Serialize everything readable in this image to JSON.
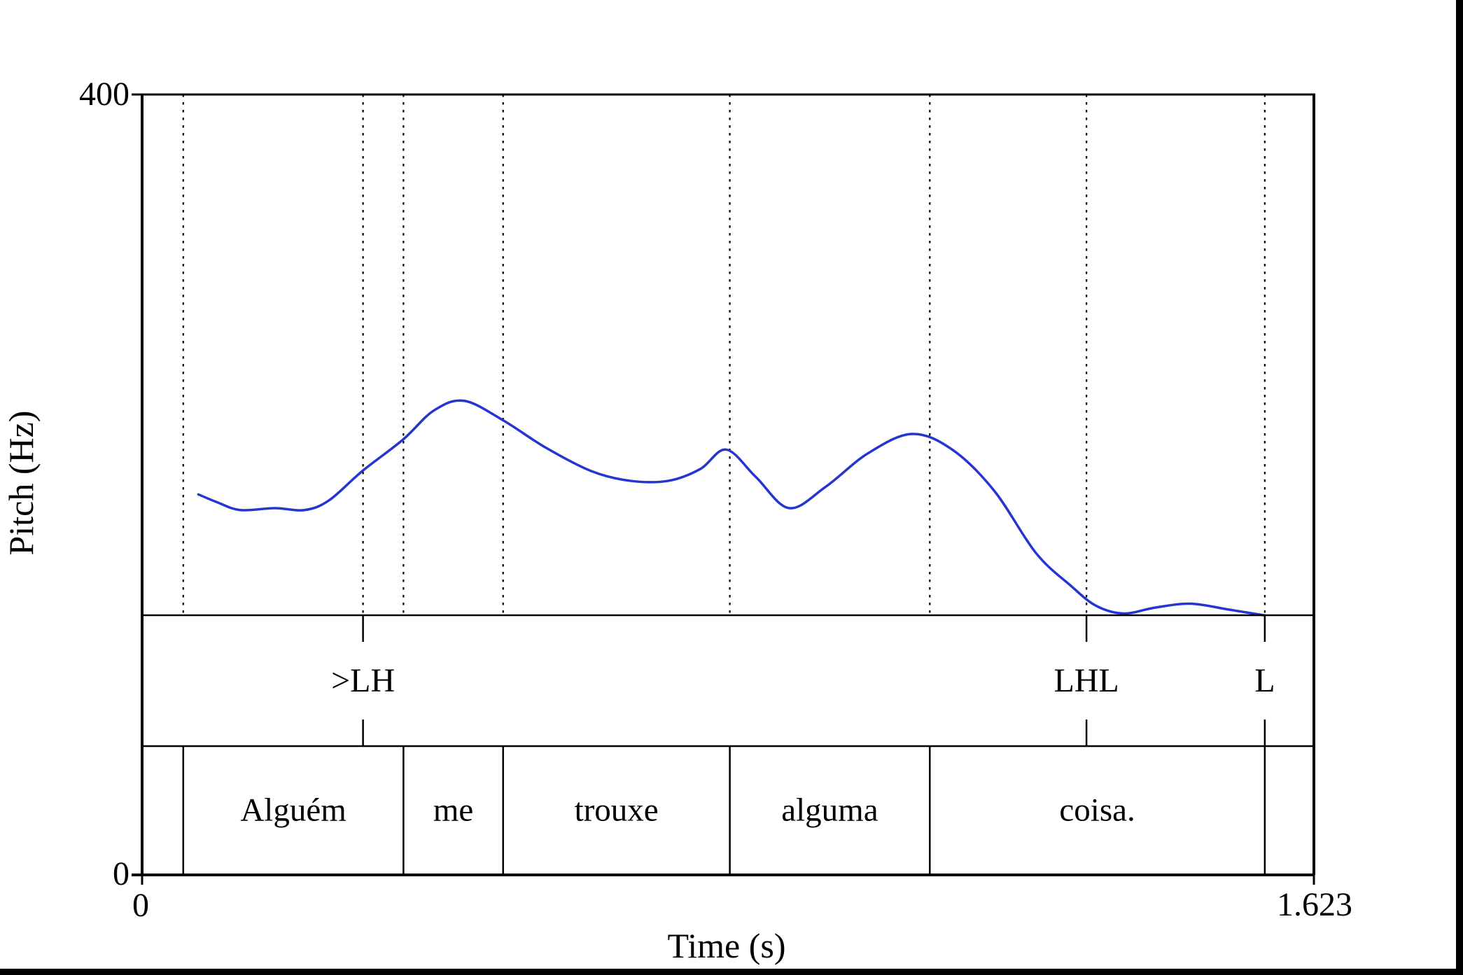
{
  "chart_data": {
    "type": "line",
    "title": "",
    "xlabel": "Time (s)",
    "ylabel": "Pitch (Hz)",
    "xlim": [
      0,
      1.623
    ],
    "ylim": [
      0,
      400
    ],
    "grid": false,
    "x_tick_labels": [
      "0",
      "1.623"
    ],
    "y_tick_labels": [
      "0",
      "400"
    ],
    "curve_color": "#2535d2",
    "series": [
      {
        "name": "pitch_contour",
        "units": [
          "time_s",
          "hz"
        ],
        "color": "#2535d2",
        "points": [
          [
            0.078,
            195
          ],
          [
            0.104,
            191
          ],
          [
            0.136,
            187
          ],
          [
            0.184,
            188
          ],
          [
            0.225,
            187
          ],
          [
            0.259,
            192
          ],
          [
            0.305,
            207
          ],
          [
            0.361,
            223
          ],
          [
            0.404,
            238
          ],
          [
            0.446,
            243
          ],
          [
            0.5,
            233
          ],
          [
            0.559,
            219
          ],
          [
            0.622,
            207
          ],
          [
            0.676,
            202
          ],
          [
            0.729,
            202
          ],
          [
            0.773,
            208
          ],
          [
            0.809,
            218
          ],
          [
            0.85,
            204
          ],
          [
            0.896,
            188
          ],
          [
            0.947,
            199
          ],
          [
            1.005,
            216
          ],
          [
            1.066,
            226
          ],
          [
            1.122,
            218
          ],
          [
            1.18,
            197
          ],
          [
            1.238,
            165
          ],
          [
            1.287,
            148
          ],
          [
            1.321,
            138
          ],
          [
            1.359,
            134
          ],
          [
            1.403,
            137
          ],
          [
            1.452,
            139
          ],
          [
            1.505,
            136
          ],
          [
            1.555,
            133
          ]
        ]
      }
    ],
    "tiers": {
      "tones": {
        "type": "point",
        "points": [
          {
            "time": 0.306,
            "label": ">LH"
          },
          {
            "time": 1.308,
            "label": "LHL"
          },
          {
            "time": 1.555,
            "label": "L"
          }
        ]
      },
      "words": {
        "type": "interval",
        "intervals": [
          {
            "start": 0,
            "end": 0.057,
            "label": ""
          },
          {
            "start": 0.057,
            "end": 0.362,
            "label": "Alguém"
          },
          {
            "start": 0.362,
            "end": 0.5,
            "label": "me"
          },
          {
            "start": 0.5,
            "end": 0.814,
            "label": "trouxe"
          },
          {
            "start": 0.814,
            "end": 1.091,
            "label": "alguma"
          },
          {
            "start": 1.091,
            "end": 1.555,
            "label": "coisa."
          },
          {
            "start": 1.555,
            "end": 1.623,
            "label": ""
          }
        ]
      }
    }
  }
}
